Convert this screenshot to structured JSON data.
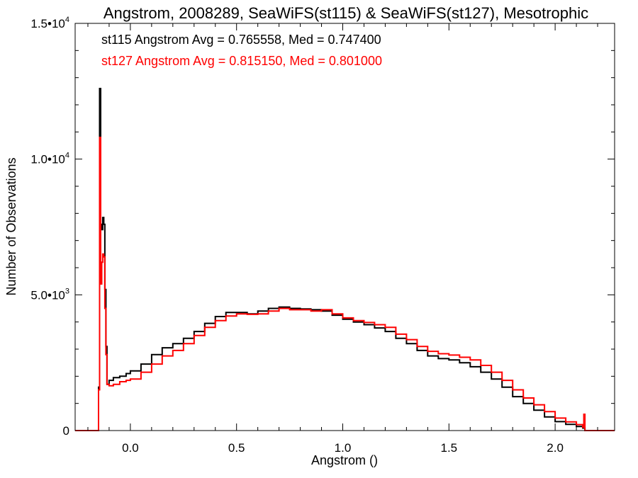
{
  "chart_data": {
    "type": "line",
    "title": "Angstrom, 2008289, SeaWiFS(st115) & SeaWiFS(st127), Mesotrophic",
    "xlabel": "Angstrom ()",
    "ylabel": "Number of Observations",
    "xlim": [
      -0.26,
      2.28
    ],
    "ylim": [
      0,
      15000
    ],
    "x_ticks": [
      {
        "value": 0.0,
        "label": "0.0"
      },
      {
        "value": 0.5,
        "label": "0.5"
      },
      {
        "value": 1.0,
        "label": "1.0"
      },
      {
        "value": 1.5,
        "label": "1.5"
      },
      {
        "value": 2.0,
        "label": "2.0"
      }
    ],
    "y_ticks": [
      {
        "value": 0,
        "label": "0",
        "exp": ""
      },
      {
        "value": 5000,
        "label": "5.0•10",
        "exp": "3"
      },
      {
        "value": 10000,
        "label": "1.0•10",
        "exp": "4"
      },
      {
        "value": 15000,
        "label": "1.5•10",
        "exp": "4"
      }
    ],
    "grid": false,
    "legend_position": "top-left",
    "annotations": [
      {
        "text": "st115 Angstrom Avg = 0.765558, Med = 0.747400",
        "color": "#000000"
      },
      {
        "text": "st127 Angstrom Avg = 0.815150, Med = 0.801000",
        "color": "#ff0000"
      }
    ],
    "series": [
      {
        "color": "#000000",
        "points": [
          [
            -0.26,
            0
          ],
          [
            -0.16,
            0
          ],
          [
            -0.15,
            1600
          ],
          [
            -0.145,
            12600
          ],
          [
            -0.14,
            7600
          ],
          [
            -0.135,
            7400
          ],
          [
            -0.13,
            7850
          ],
          [
            -0.125,
            7600
          ],
          [
            -0.12,
            5200
          ],
          [
            -0.115,
            3100
          ],
          [
            -0.11,
            1700
          ],
          [
            -0.1,
            1850
          ],
          [
            -0.08,
            1950
          ],
          [
            -0.05,
            2000
          ],
          [
            -0.02,
            2100
          ],
          [
            0.0,
            2200
          ],
          [
            0.05,
            2450
          ],
          [
            0.1,
            2800
          ],
          [
            0.15,
            3050
          ],
          [
            0.2,
            3200
          ],
          [
            0.25,
            3400
          ],
          [
            0.3,
            3650
          ],
          [
            0.35,
            3950
          ],
          [
            0.4,
            4200
          ],
          [
            0.45,
            4350
          ],
          [
            0.5,
            4350
          ],
          [
            0.55,
            4300
          ],
          [
            0.6,
            4400
          ],
          [
            0.65,
            4500
          ],
          [
            0.7,
            4550
          ],
          [
            0.75,
            4500
          ],
          [
            0.8,
            4480
          ],
          [
            0.85,
            4450
          ],
          [
            0.9,
            4400
          ],
          [
            0.95,
            4250
          ],
          [
            1.0,
            4100
          ],
          [
            1.05,
            4000
          ],
          [
            1.1,
            3900
          ],
          [
            1.15,
            3780
          ],
          [
            1.2,
            3650
          ],
          [
            1.25,
            3400
          ],
          [
            1.3,
            3200
          ],
          [
            1.35,
            2950
          ],
          [
            1.4,
            2750
          ],
          [
            1.45,
            2650
          ],
          [
            1.5,
            2600
          ],
          [
            1.55,
            2500
          ],
          [
            1.6,
            2350
          ],
          [
            1.65,
            2150
          ],
          [
            1.7,
            1900
          ],
          [
            1.75,
            1600
          ],
          [
            1.8,
            1250
          ],
          [
            1.85,
            1000
          ],
          [
            1.9,
            750
          ],
          [
            1.95,
            500
          ],
          [
            2.0,
            330
          ],
          [
            2.05,
            230
          ],
          [
            2.1,
            150
          ],
          [
            2.13,
            90
          ],
          [
            2.14,
            0
          ],
          [
            2.28,
            0
          ]
        ]
      },
      {
        "color": "#ff0000",
        "points": [
          [
            -0.26,
            0
          ],
          [
            -0.16,
            0
          ],
          [
            -0.15,
            1500
          ],
          [
            -0.145,
            10800
          ],
          [
            -0.14,
            5400
          ],
          [
            -0.135,
            6200
          ],
          [
            -0.13,
            6500
          ],
          [
            -0.125,
            6400
          ],
          [
            -0.12,
            4500
          ],
          [
            -0.115,
            2800
          ],
          [
            -0.11,
            1700
          ],
          [
            -0.1,
            1650
          ],
          [
            -0.08,
            1700
          ],
          [
            -0.05,
            1800
          ],
          [
            -0.02,
            1850
          ],
          [
            0.0,
            1900
          ],
          [
            0.05,
            2150
          ],
          [
            0.1,
            2450
          ],
          [
            0.15,
            2750
          ],
          [
            0.2,
            2950
          ],
          [
            0.25,
            3200
          ],
          [
            0.3,
            3500
          ],
          [
            0.35,
            3800
          ],
          [
            0.4,
            4050
          ],
          [
            0.45,
            4220
          ],
          [
            0.5,
            4300
          ],
          [
            0.55,
            4280
          ],
          [
            0.6,
            4300
          ],
          [
            0.65,
            4400
          ],
          [
            0.7,
            4500
          ],
          [
            0.75,
            4450
          ],
          [
            0.8,
            4450
          ],
          [
            0.85,
            4400
          ],
          [
            0.9,
            4450
          ],
          [
            0.95,
            4300
          ],
          [
            1.0,
            4150
          ],
          [
            1.05,
            4050
          ],
          [
            1.1,
            3980
          ],
          [
            1.15,
            3900
          ],
          [
            1.2,
            3800
          ],
          [
            1.25,
            3550
          ],
          [
            1.3,
            3350
          ],
          [
            1.35,
            3100
          ],
          [
            1.4,
            2920
          ],
          [
            1.45,
            2830
          ],
          [
            1.5,
            2780
          ],
          [
            1.55,
            2700
          ],
          [
            1.6,
            2600
          ],
          [
            1.65,
            2400
          ],
          [
            1.7,
            2150
          ],
          [
            1.75,
            1850
          ],
          [
            1.8,
            1500
          ],
          [
            1.85,
            1200
          ],
          [
            1.9,
            950
          ],
          [
            1.95,
            700
          ],
          [
            2.0,
            460
          ],
          [
            2.05,
            320
          ],
          [
            2.1,
            220
          ],
          [
            2.13,
            120
          ],
          [
            2.135,
            600
          ],
          [
            2.14,
            0
          ],
          [
            2.28,
            0
          ]
        ]
      }
    ]
  }
}
